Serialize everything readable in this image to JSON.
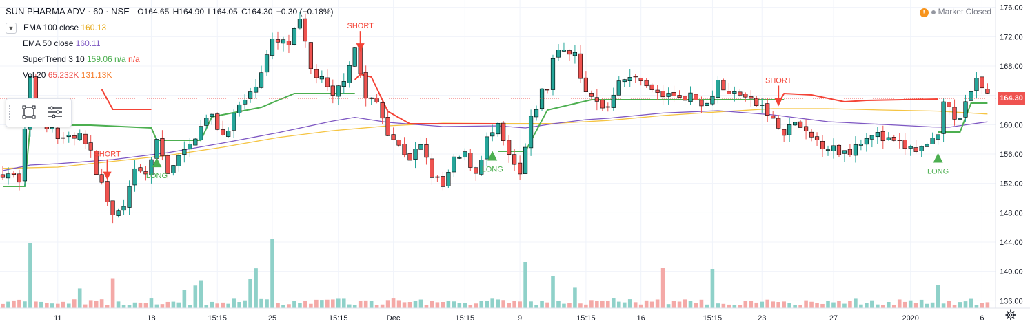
{
  "legend": {
    "title": "SUN PHARMA ADV · 60 · NSE",
    "ohlc": {
      "o": "O164.65",
      "h": "H164.90",
      "l": "L164.05",
      "c": "C164.30",
      "chg": "−0.30 (−0.18%)"
    },
    "ema100": {
      "label": "EMA 100 close",
      "value": "160.13"
    },
    "ema50": {
      "label": "EMA 50 close",
      "value": "160.11"
    },
    "supertrend": {
      "label": "SuperTrend 3 10",
      "value": "159.06",
      "na1": "n/a",
      "na2": "n/a"
    },
    "vol": {
      "label": "Vol 20",
      "v1": "65.232K",
      "v2": "131.13K"
    }
  },
  "market_status": "Market Closed",
  "last_price": "164.30",
  "colors": {
    "up": "#26a69a",
    "down": "#ef5350",
    "ema100": "#f5c442",
    "ema50": "#7e57c2",
    "st_up": "#4caf50",
    "st_down": "#f44336",
    "vol_up": "#8fd1c9",
    "vol_down": "#f4a9a7"
  },
  "chart_data": {
    "type": "candlestick",
    "symbol": "SUN PHARMA ADV",
    "interval": "60",
    "exchange": "NSE",
    "ylim": [
      135,
      177
    ],
    "y_ticks": [
      "176.00",
      "172.00",
      "168.00",
      "164.00",
      "160.00",
      "156.00",
      "152.00",
      "148.00",
      "144.00",
      "140.00",
      "136.00"
    ],
    "x_ticks": [
      "11",
      "18",
      "15:15",
      "25",
      "15:15",
      "Dec",
      "15:15",
      "9",
      "15:15",
      "16",
      "15:15",
      "23",
      "27",
      "2020",
      "6"
    ],
    "x_tick_index": [
      10,
      27,
      39,
      49,
      61,
      71,
      84,
      94,
      106,
      116,
      129,
      138,
      151,
      165,
      178
    ],
    "grid": true,
    "n_bars": 180,
    "series": [
      {
        "name": "Price",
        "type": "candlestick"
      },
      {
        "name": "EMA 100 close",
        "type": "line"
      },
      {
        "name": "EMA 50 close",
        "type": "line"
      },
      {
        "name": "SuperTrend 3 10",
        "type": "step"
      },
      {
        "name": "Vol 20",
        "type": "histogram"
      }
    ],
    "close_path": [
      [
        0,
        153.5
      ],
      [
        3,
        152.8
      ],
      [
        5,
        166.0
      ],
      [
        6,
        161.5
      ],
      [
        10,
        158.2
      ],
      [
        14,
        158.4
      ],
      [
        16,
        156.0
      ],
      [
        18,
        151.8
      ],
      [
        20,
        147.5
      ],
      [
        22,
        148.5
      ],
      [
        24,
        153.5
      ],
      [
        26,
        153.2
      ],
      [
        28,
        157.5
      ],
      [
        30,
        153.8
      ],
      [
        32,
        155.5
      ],
      [
        34,
        157.0
      ],
      [
        36,
        160.3
      ],
      [
        38,
        161.0
      ],
      [
        40,
        158.5
      ],
      [
        43,
        162.5
      ],
      [
        45,
        164.0
      ],
      [
        47,
        167.5
      ],
      [
        49,
        171.2
      ],
      [
        52,
        171.0
      ],
      [
        54,
        174.0
      ],
      [
        56,
        167.5
      ],
      [
        58,
        166.0
      ],
      [
        60,
        163.5
      ],
      [
        62,
        166.5
      ],
      [
        64,
        170.5
      ],
      [
        66,
        163.5
      ],
      [
        68,
        163.0
      ],
      [
        70,
        159.2
      ],
      [
        72,
        157.0
      ],
      [
        74,
        155.5
      ],
      [
        76,
        157.0
      ],
      [
        78,
        153.2
      ],
      [
        80,
        151.5
      ],
      [
        82,
        155.0
      ],
      [
        84,
        155.8
      ],
      [
        86,
        153.5
      ],
      [
        88,
        158.0
      ],
      [
        90,
        159.5
      ],
      [
        92,
        155.5
      ],
      [
        94,
        153.0
      ],
      [
        96,
        160.5
      ],
      [
        98,
        164.5
      ],
      [
        99,
        165.0
      ],
      [
        100,
        169.0
      ],
      [
        102,
        170.5
      ],
      [
        104,
        169.5
      ],
      [
        106,
        164.0
      ],
      [
        108,
        163.0
      ],
      [
        110,
        162.5
      ],
      [
        112,
        166.5
      ],
      [
        114,
        166.0
      ],
      [
        116,
        166.5
      ],
      [
        118,
        164.5
      ],
      [
        120,
        164.0
      ],
      [
        122,
        164.0
      ],
      [
        124,
        164.0
      ],
      [
        126,
        163.5
      ],
      [
        128,
        163.0
      ],
      [
        130,
        166.0
      ],
      [
        132,
        164.0
      ],
      [
        134,
        164.5
      ],
      [
        136,
        163.0
      ],
      [
        138,
        162.5
      ],
      [
        140,
        160.5
      ],
      [
        142,
        158.5
      ],
      [
        144,
        160.5
      ],
      [
        146,
        158.5
      ],
      [
        148,
        157.8
      ],
      [
        150,
        157.0
      ],
      [
        152,
        156.3
      ],
      [
        154,
        156.5
      ],
      [
        156,
        158.0
      ],
      [
        158,
        159.0
      ],
      [
        160,
        158.0
      ],
      [
        162,
        157.5
      ],
      [
        164,
        157.0
      ],
      [
        166,
        156.5
      ],
      [
        168,
        157.0
      ],
      [
        170,
        158.0
      ],
      [
        171,
        163.5
      ],
      [
        173,
        160.5
      ],
      [
        175,
        162.5
      ],
      [
        177,
        166.0
      ],
      [
        179,
        164.3
      ]
    ],
    "ema100_path": [
      [
        0,
        122.4
      ],
      [
        10,
        121.5
      ],
      [
        20,
        117.3
      ],
      [
        30,
        113.0
      ],
      [
        40,
        107.0
      ],
      [
        50,
        100.0
      ],
      [
        60,
        95.0
      ],
      [
        70,
        91.5
      ],
      [
        80,
        89.6
      ],
      [
        90,
        89.8
      ],
      [
        100,
        89.8
      ],
      [
        110,
        87.6
      ],
      [
        120,
        84.0
      ],
      [
        130,
        81.4
      ],
      [
        140,
        79.0
      ],
      [
        150,
        79.0
      ],
      [
        160,
        80.0
      ],
      [
        170,
        80.8
      ],
      [
        179,
        82.9
      ]
    ],
    "ema50_path": [
      [
        0,
        124.0
      ],
      [
        5,
        120.0
      ],
      [
        10,
        119.0
      ],
      [
        20,
        116.0
      ],
      [
        30,
        111.0
      ],
      [
        40,
        104.0
      ],
      [
        50,
        96.5
      ],
      [
        60,
        88.0
      ],
      [
        64,
        85.3
      ],
      [
        70,
        89.0
      ],
      [
        80,
        92.0
      ],
      [
        90,
        91.5
      ],
      [
        95,
        93.0
      ],
      [
        100,
        90.0
      ],
      [
        106,
        87.0
      ],
      [
        110,
        86.0
      ],
      [
        120,
        82.2
      ],
      [
        130,
        80.5
      ],
      [
        140,
        83.5
      ],
      [
        150,
        88.5
      ],
      [
        160,
        90.5
      ],
      [
        169,
        92.3
      ],
      [
        172,
        92.5
      ],
      [
        179,
        88.6
      ]
    ],
    "supertrend_up_path": [
      [
        0,
        135.5
      ],
      [
        4,
        135.5
      ],
      [
        5,
        91.0
      ],
      [
        16,
        91.0
      ],
      [
        27,
        93.0
      ],
      [
        28,
        102.0
      ],
      [
        36,
        102.0
      ],
      [
        38,
        85.0
      ],
      [
        47,
        78.0
      ],
      [
        53,
        68.0
      ],
      [
        64,
        68.0
      ],
      [
        64,
        68.0
      ]
    ],
    "supertrend_down_path": [
      [
        18,
        65.0
      ],
      [
        20,
        79.5
      ],
      [
        27,
        79.5
      ]
    ],
    "supertrend_down2_path": [
      [
        64,
        58.0
      ],
      [
        65,
        54.0
      ],
      [
        67,
        56.0
      ],
      [
        70,
        81.0
      ],
      [
        74,
        90.0
      ],
      [
        80,
        90.0
      ],
      [
        90,
        90.0
      ]
    ],
    "supertrend_up2_path": [
      [
        90,
        110.0
      ],
      [
        95,
        110.0
      ],
      [
        99,
        80.0
      ],
      [
        107,
        72.5
      ],
      [
        123,
        72.5
      ],
      [
        142,
        72.5
      ]
    ],
    "supertrend_down3_path": [
      [
        141,
        75.0
      ],
      [
        142,
        68.0
      ],
      [
        147,
        69.0
      ],
      [
        153,
        74.0
      ],
      [
        157,
        73.0
      ],
      [
        170,
        72.0
      ]
    ],
    "supertrend_up3_path": [
      [
        170,
        96.0
      ],
      [
        174,
        96.0
      ],
      [
        176,
        75.0
      ],
      [
        179,
        75.0
      ]
    ],
    "signals": [
      {
        "type": "SHORT",
        "label": "SHORT",
        "bar": 19
      },
      {
        "type": "LONG",
        "label": "LONG",
        "bar": 28
      },
      {
        "type": "SHORT",
        "label": "SHORT",
        "bar": 65
      },
      {
        "type": "LONG",
        "label": "LONG",
        "bar": 89
      },
      {
        "type": "SHORT",
        "label": "SHORT",
        "bar": 141
      },
      {
        "type": "LONG",
        "label": "LONG",
        "bar": 170
      }
    ]
  }
}
